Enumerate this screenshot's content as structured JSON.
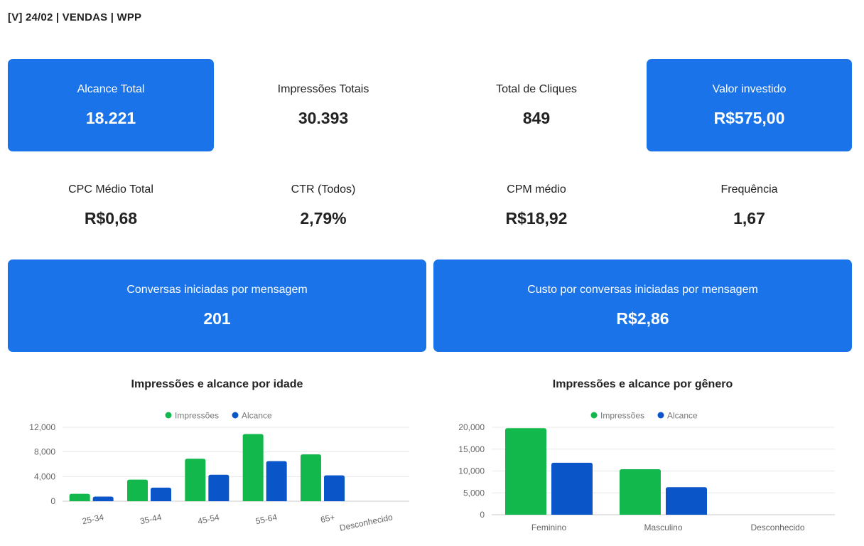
{
  "header": {
    "title": "[V] 24/02 | VENDAS | WPP"
  },
  "kpis": {
    "alcance": {
      "label": "Alcance Total",
      "value": "18.221"
    },
    "impressoes": {
      "label": "Impressões Totais",
      "value": "30.393"
    },
    "cliques": {
      "label": "Total de Cliques",
      "value": "849"
    },
    "investido": {
      "label": "Valor investido",
      "value": "R$575,00"
    },
    "cpc": {
      "label": "CPC Médio Total",
      "value": "R$0,68"
    },
    "ctr": {
      "label": "CTR (Todos)",
      "value": "2,79%"
    },
    "cpm": {
      "label": "CPM médio",
      "value": "R$18,92"
    },
    "frequencia": {
      "label": "Frequência",
      "value": "1,67"
    },
    "conversas": {
      "label": "Conversas iniciadas por mensagem",
      "value": "201"
    },
    "custo_conversas": {
      "label": "Custo por conversas iniciadas por mensagem",
      "value": "R$2,86"
    }
  },
  "colors": {
    "card_blue": "#1a73e8",
    "series_impressoes": "#12b84b",
    "series_alcance": "#0a56c8"
  },
  "chart_data": [
    {
      "type": "bar",
      "title": "Impressões e alcance por idade",
      "categories": [
        "25-34",
        "35-44",
        "45-54",
        "55-64",
        "65+",
        "Desconhecido"
      ],
      "series": [
        {
          "name": "Impressões",
          "values": [
            1200,
            3500,
            6900,
            10900,
            7600,
            0
          ]
        },
        {
          "name": "Alcance",
          "values": [
            750,
            2200,
            4300,
            6500,
            4200,
            0
          ]
        }
      ],
      "yticks": [
        "0",
        "4,000",
        "8,000",
        "12,000"
      ],
      "ylim": [
        0,
        12000
      ],
      "legend": "top",
      "grid": true,
      "xlabel": "",
      "ylabel": ""
    },
    {
      "type": "bar",
      "title": "Impressões e alcance por gênero",
      "categories": [
        "Feminino",
        "Masculino",
        "Desconhecido"
      ],
      "series": [
        {
          "name": "Impressões",
          "values": [
            19800,
            10400,
            0
          ]
        },
        {
          "name": "Alcance",
          "values": [
            11900,
            6300,
            0
          ]
        }
      ],
      "yticks": [
        "0",
        "5,000",
        "10,000",
        "15,000",
        "20,000"
      ],
      "ylim": [
        0,
        20000
      ],
      "legend": "top",
      "grid": true,
      "xlabel": "",
      "ylabel": ""
    }
  ]
}
